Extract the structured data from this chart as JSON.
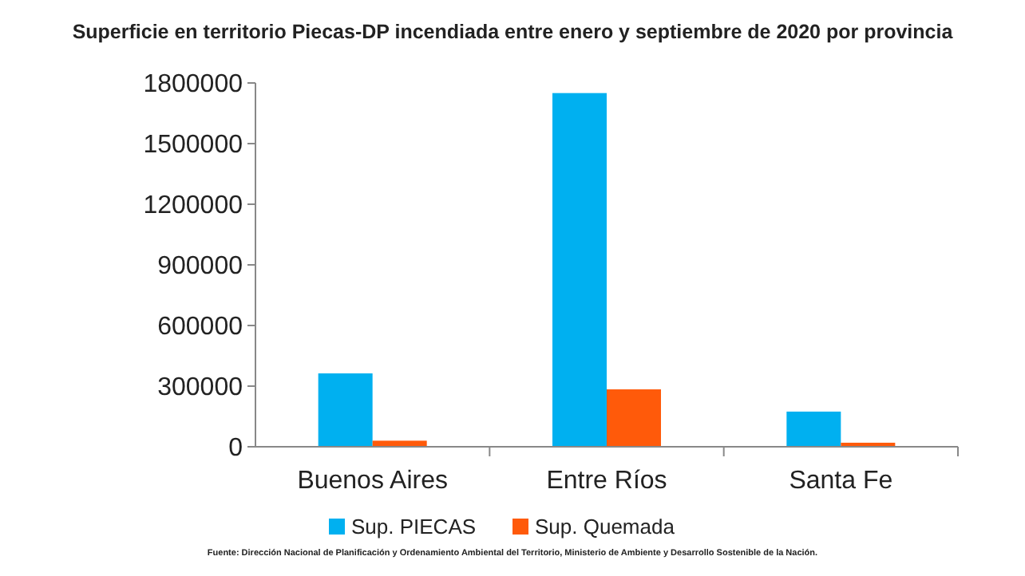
{
  "chart_data": {
    "type": "bar",
    "title": "Superficie en territorio Piecas-DP incendiada entre enero y septiembre de 2020 por provincia",
    "categories": [
      "Buenos Aires",
      "Entre Ríos",
      "Santa Fe"
    ],
    "series": [
      {
        "name": "Sup. PIECAS",
        "color": "#00b0f0",
        "values": [
          363000,
          1750000,
          174000
        ]
      },
      {
        "name": "Sup. Quemada",
        "color": "#ff5a0a",
        "values": [
          30000,
          284000,
          20000
        ]
      }
    ],
    "ylim": [
      0,
      1800000
    ],
    "yticks": [
      0,
      300000,
      600000,
      900000,
      1200000,
      1500000,
      1800000
    ],
    "grid": false,
    "legend": "bottom",
    "annotations": [
      "Fuente: Dirección Nacional de Planificación y Ordenamiento Ambiental del Territorio, Ministerio de Ambiente y Desarrollo Sostenible de la Nación."
    ]
  }
}
